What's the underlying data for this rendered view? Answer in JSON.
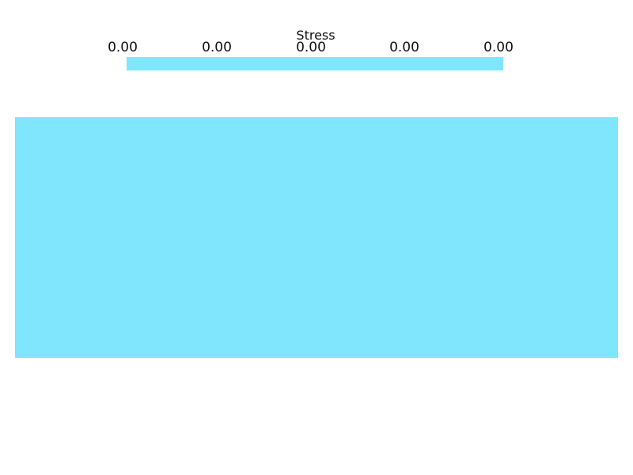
{
  "scalar_bar": {
    "title": "Stress",
    "tick_labels": [
      "0.00",
      "0.00",
      "0.00",
      "0.00",
      "0.00"
    ],
    "color": "#80e6fe"
  },
  "mesh": {
    "color": "#80e6fe"
  },
  "background": "#ffffff"
}
